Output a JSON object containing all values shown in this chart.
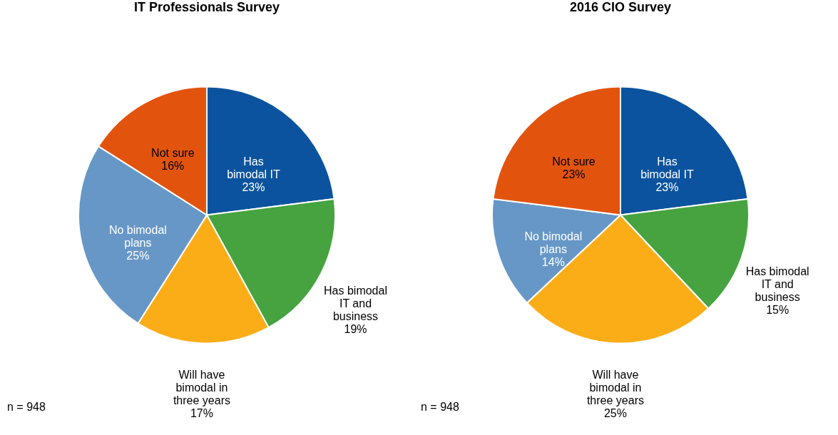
{
  "chart_data": [
    {
      "type": "pie",
      "title": "IT Professionals Survey",
      "categories": [
        "Has bimodal IT",
        "Has bimodal IT and business",
        "Will have bimodal in three years",
        "No bimodal plans",
        "Not sure"
      ],
      "values": [
        23,
        19,
        17,
        25,
        16
      ],
      "value_labels": [
        "23%",
        "19%",
        "17%",
        "25%",
        "16%"
      ],
      "colors": [
        "#0b539e",
        "#46a340",
        "#fbad18",
        "#6797c6",
        "#e2540e"
      ],
      "annotations": [
        "n = 948"
      ]
    },
    {
      "type": "pie",
      "title": "2016 CIO Survey",
      "categories": [
        "Has bimodal IT",
        "Has bimodal IT and business",
        "Will have bimodal in three years",
        "No bimodal plans",
        "Not sure"
      ],
      "values": [
        23,
        15,
        25,
        14,
        23
      ],
      "value_labels": [
        "23%",
        "15%",
        "25%",
        "14%",
        "23%"
      ],
      "colors": [
        "#0b539e",
        "#46a340",
        "#fbad18",
        "#6797c6",
        "#e2540e"
      ],
      "annotations": [
        "n = 948"
      ]
    }
  ]
}
